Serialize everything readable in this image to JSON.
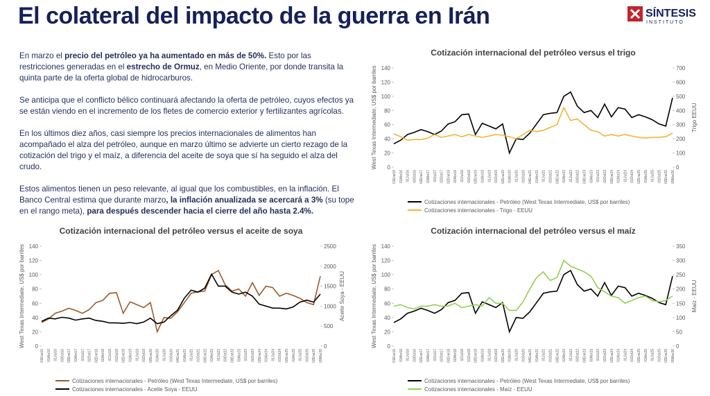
{
  "header": {
    "title": "El colateral del impacto de la guerra en Irán",
    "logo": "SÍNTESIS",
    "logo_sub": "INSTITUTO"
  },
  "paragraphs": [
    [
      {
        "text": "En marzo el ",
        "bold": false
      },
      {
        "text": "precio del petróleo ya ha aumentado en más de 50%.",
        "bold": true
      },
      {
        "text": " Esto por las restricciones generadas en el ",
        "bold": false
      },
      {
        "text": "estrecho de Ormuz",
        "bold": true
      },
      {
        "text": ", en Medio Oriente, por donde transita la quinta parte de la oferta global de hidrocarburos.",
        "bold": false
      }
    ],
    [
      {
        "text": "Se anticipa que el conflicto bélico continuará afectando la oferta de petróleo, cuyos efectos ya se están viendo en el incremento de los fletes de comercio exterior y fertilizantes agrícolas.",
        "bold": false
      }
    ],
    [
      {
        "text": "En los últimos diez años, casi siempre los precios internacionales de alimentos han acompañado el alza del petróleo, aunque en marzo último se advierte un cierto rezago de la cotización del trigo y el maíz, a diferencia del aceite de soya que sí ha seguido el alza del crudo.",
        "bold": false
      }
    ],
    [
      {
        "text": "Estos alimentos tienen un peso relevante, al igual que los combustibles, en la inflación. El Banco Central estima que durante marzo",
        "bold": false
      },
      {
        "text": ", la inflación anualizada se acercará a 3%",
        "bold": true
      },
      {
        "text": " (su tope en el rango meta), ",
        "bold": false
      },
      {
        "text": "para después descender hacia el cierre del año hasta 2.4%.",
        "bold": true
      }
    ]
  ],
  "chart_data": [
    {
      "type": "line",
      "title": "Cotización internacional del petróleo versus el trigo",
      "y_label": "West Texas Intermediate, US$ por barriles",
      "y2_label": "Trigo EEUU",
      "categories": [
        "01Ene16",
        "01Abr16",
        "01Jul16",
        "03Oct16",
        "02Ene17",
        "03Abr17",
        "03Jul17",
        "02Oct17",
        "02Ene18",
        "02Abr18",
        "02Jul18",
        "01Oct18",
        "02Ene19",
        "01Abr19",
        "01Jul19",
        "01Oct19",
        "02Ene20",
        "01Abr20",
        "01Jul20",
        "01Oct20",
        "04Ene21",
        "01Abr21",
        "01Jul21",
        "01Oct21",
        "03Ene22",
        "01Abr22",
        "01Jul22",
        "03Oct22",
        "03Ene23",
        "03Abr23",
        "03Jul23",
        "02Oct23",
        "02Ene24",
        "01Abr24",
        "01Jul24",
        "01Oct24",
        "02Ene25",
        "01Abr25",
        "01Jul25",
        "01Oct25",
        "02Ene26",
        "09Mar26"
      ],
      "series": [
        {
          "name": "Cotizaciones internacionales - Petróleo (West Texas Intermediate, US$ por barriles)",
          "color": "#000000",
          "values": [
            33,
            38,
            46,
            49,
            53,
            50,
            46,
            51,
            61,
            64,
            74,
            75,
            46,
            62,
            58,
            54,
            61,
            20,
            40,
            39,
            48,
            61,
            74,
            76,
            77,
            100,
            106,
            86,
            77,
            80,
            70,
            89,
            71,
            84,
            82,
            70,
            74,
            71,
            67,
            61,
            58,
            98
          ]
        },
        {
          "name": "Cotizaciones internacionales - Trigo - EEUU",
          "color": "#f5b335",
          "axis": "y2",
          "values": [
            235,
            215,
            190,
            195,
            195,
            205,
            230,
            210,
            220,
            230,
            215,
            230,
            220,
            210,
            220,
            230,
            225,
            215,
            200,
            230,
            260,
            250,
            260,
            280,
            300,
            420,
            330,
            340,
            300,
            260,
            250,
            220,
            230,
            220,
            230,
            220,
            210,
            205,
            210,
            210,
            215,
            240
          ]
        }
      ],
      "ylim": [
        0,
        140
      ],
      "yticks": [
        0,
        20,
        40,
        60,
        80,
        100,
        120,
        140
      ],
      "y2lim": [
        0,
        700
      ],
      "y2ticks": [
        0,
        100,
        200,
        300,
        400,
        500,
        600,
        700
      ],
      "grid": false
    },
    {
      "type": "line",
      "title": "Cotización internacional del petróleo versus el aceite de soya",
      "y_label": "West Texas Intermediate, US$ por barriles",
      "y2_label": "Aceite Soya - EEUU",
      "categories": [
        "01Ene16",
        "01Abr16",
        "01Jul16",
        "03Oct16",
        "02Ene17",
        "03Abr17",
        "03Jul17",
        "02Oct17",
        "02Ene18",
        "02Abr18",
        "02Jul18",
        "01Oct18",
        "02Ene19",
        "01Abr19",
        "01Jul19",
        "01Oct19",
        "02Ene20",
        "01Abr20",
        "01Jul20",
        "01Oct20",
        "04Ene21",
        "01Abr21",
        "01Jul21",
        "01Oct21",
        "03Ene22",
        "01Abr22",
        "01Jul22",
        "03Oct22",
        "03Ene23",
        "03Abr23",
        "03Jul23",
        "02Oct23",
        "02Ene24",
        "01Abr24",
        "01Jul24",
        "01Oct24",
        "02Ene25",
        "01Abr25",
        "01Jul25",
        "01Oct25",
        "02Ene26",
        "09Mar26"
      ],
      "series": [
        {
          "name": "Cotizaciones internacionales - Petróleo (West Texas Intermediate, US$ por barriles)",
          "color": "#9c5a2a",
          "values": [
            33,
            38,
            46,
            49,
            53,
            50,
            46,
            51,
            61,
            64,
            74,
            75,
            46,
            62,
            58,
            54,
            61,
            20,
            40,
            39,
            48,
            61,
            74,
            76,
            77,
            100,
            106,
            86,
            77,
            80,
            70,
            89,
            71,
            84,
            82,
            70,
            74,
            71,
            67,
            61,
            58,
            98
          ]
        },
        {
          "name": "Cotizaciones internacionales - Aceite Soya - EEUU",
          "color": "#000000",
          "axis": "y2",
          "values": [
            620,
            700,
            680,
            720,
            700,
            650,
            680,
            700,
            640,
            620,
            580,
            580,
            570,
            590,
            560,
            600,
            700,
            560,
            600,
            760,
            900,
            1200,
            1400,
            1350,
            1450,
            1800,
            1500,
            1500,
            1350,
            1300,
            1350,
            1250,
            1050,
            1000,
            950,
            950,
            930,
            980,
            1100,
            1150,
            1100,
            1300
          ]
        }
      ],
      "ylim": [
        0,
        140
      ],
      "yticks": [
        0,
        20,
        40,
        60,
        80,
        100,
        120,
        140
      ],
      "y2lim": [
        0,
        2500
      ],
      "y2ticks": [
        0,
        500,
        1000,
        1500,
        2000,
        2500
      ],
      "grid": false
    },
    {
      "type": "line",
      "title": "Cotización internacional del petróleo versus el maíz",
      "y_label": "West Texas Intermediate, US$ por barriles",
      "y2_label": "Maíz - EEUU",
      "categories": [
        "01Ene16",
        "01Abr16",
        "01Jul16",
        "03Oct16",
        "02Ene17",
        "03Abr17",
        "03Jul17",
        "02Oct17",
        "02Ene18",
        "02Abr18",
        "02Jul18",
        "01Oct18",
        "02Ene19",
        "01Abr19",
        "01Jul19",
        "01Oct19",
        "02Ene20",
        "01Abr20",
        "01Jul20",
        "01Oct20",
        "04Ene21",
        "01Abr21",
        "01Jul21",
        "01Oct21",
        "03Ene22",
        "01Abr22",
        "01Jul22",
        "03Oct22",
        "03Ene23",
        "03Abr23",
        "03Jul23",
        "02Oct23",
        "02Ene24",
        "01Abr24",
        "01Jul24",
        "01Oct24",
        "02Ene25",
        "01Abr25",
        "01Jul25",
        "01Oct25",
        "02Ene26",
        "09Mar26"
      ],
      "series": [
        {
          "name": "Cotizaciones internacionales - Petróleo (West Texas Intermediate, US$ por barriles)",
          "color": "#000000",
          "values": [
            33,
            38,
            46,
            49,
            53,
            50,
            46,
            51,
            61,
            64,
            74,
            75,
            46,
            62,
            58,
            54,
            61,
            20,
            40,
            39,
            48,
            61,
            74,
            76,
            77,
            100,
            106,
            86,
            77,
            80,
            70,
            89,
            71,
            84,
            82,
            70,
            74,
            71,
            67,
            61,
            58,
            98
          ]
        },
        {
          "name": "Cotizaciones internacionales - Maíz - EEUU",
          "color": "#92d050",
          "axis": "y2",
          "values": [
            140,
            145,
            135,
            130,
            140,
            140,
            145,
            140,
            140,
            150,
            135,
            140,
            145,
            140,
            170,
            150,
            150,
            125,
            125,
            155,
            200,
            240,
            260,
            230,
            240,
            300,
            280,
            270,
            260,
            245,
            205,
            190,
            175,
            170,
            150,
            160,
            170,
            175,
            160,
            155,
            160,
            175
          ]
        }
      ],
      "ylim": [
        0,
        140
      ],
      "yticks": [
        0,
        20,
        40,
        60,
        80,
        100,
        120,
        140
      ],
      "y2lim": [
        0,
        350
      ],
      "y2ticks": [
        0,
        50,
        100,
        150,
        200,
        250,
        300,
        350
      ],
      "grid": false
    }
  ]
}
